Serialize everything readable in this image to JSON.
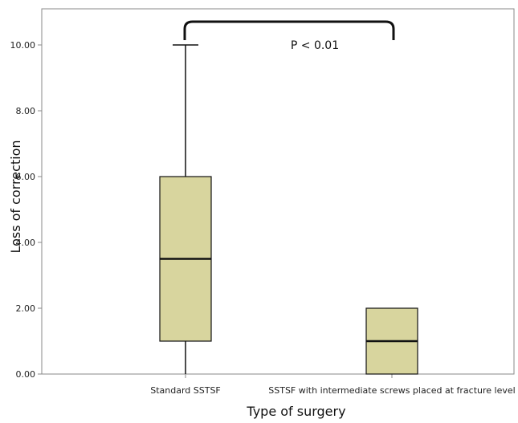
{
  "chart_data": {
    "type": "boxplot",
    "xlabel": "Type of surgery",
    "ylabel": "Loss of correction",
    "ylim": [
      0,
      10.5
    ],
    "yticks": [
      "0.00",
      "2.00",
      "4.00",
      "6.00",
      "8.00",
      "10.00"
    ],
    "categories": [
      "Standard SSTSF",
      "SSTSF with intermediate screws placed at fracture level"
    ],
    "boxes": [
      {
        "category": "Standard SSTSF",
        "min": 0,
        "q1": 1,
        "median": 3.5,
        "q3": 6,
        "max": 10
      },
      {
        "category": "SSTSF with intermediate screws placed at fracture level",
        "min": 0,
        "q1": 0,
        "median": 1,
        "q3": 2,
        "max": 2
      }
    ],
    "annotation": "P < 0.01",
    "grid": false,
    "colors": {
      "box_fill": "#d8d59e",
      "line": "#111111",
      "frame": "#888888"
    }
  }
}
